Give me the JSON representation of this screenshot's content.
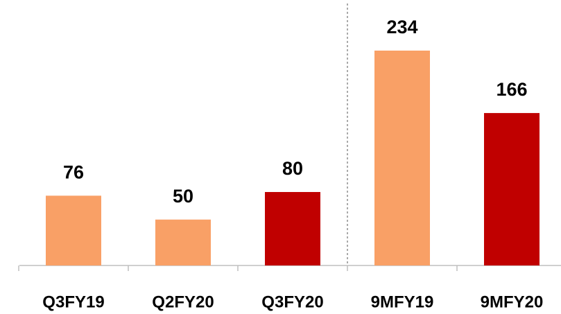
{
  "chart_data": {
    "type": "bar",
    "categories": [
      "Q3FY19",
      "Q2FY20",
      "Q3FY20",
      "9MFY19",
      "9MFY20"
    ],
    "values": [
      76,
      50,
      80,
      234,
      166
    ],
    "colors": [
      "#f9a066",
      "#f9a066",
      "#c00000",
      "#f9a066",
      "#c00000"
    ]
  }
}
